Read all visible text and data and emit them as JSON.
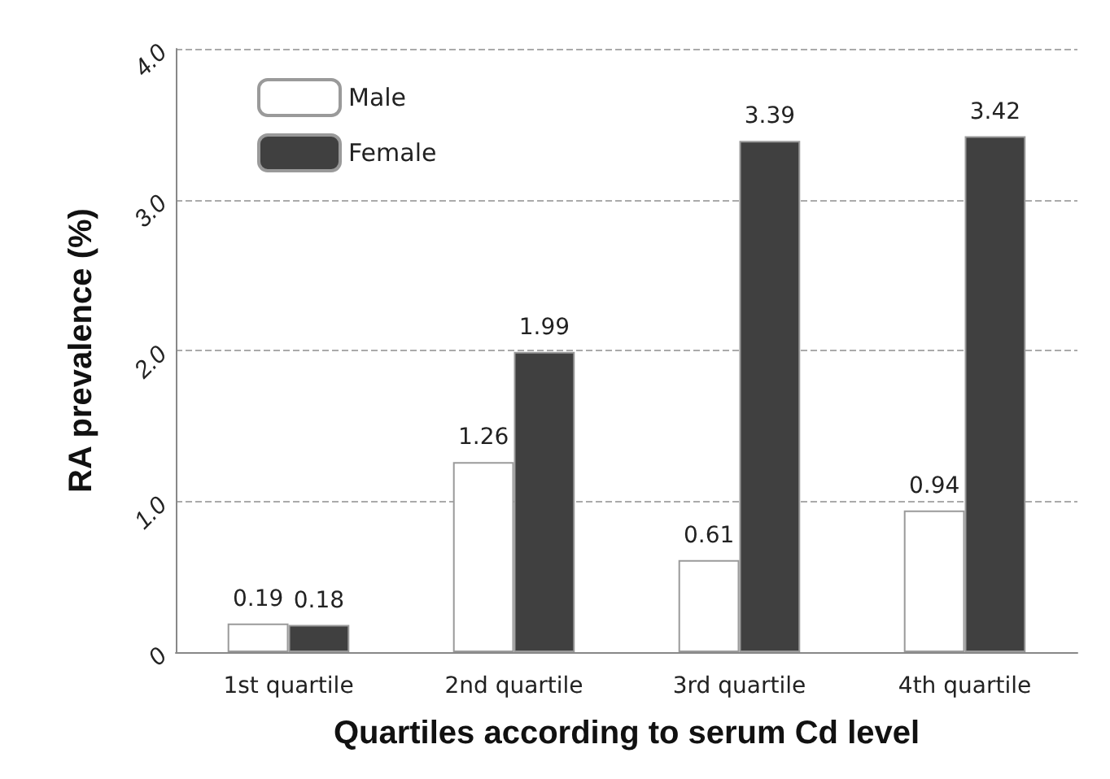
{
  "chart_data": {
    "type": "bar",
    "xlabel": "Quartiles according to serum Cd level",
    "ylabel": "RA prevalence (%)",
    "categories": [
      "1st quartile",
      "2nd quartile",
      "3rd quartile",
      "4th quartile"
    ],
    "series": [
      {
        "name": "Male",
        "color": "#ffffff",
        "values": [
          0.19,
          1.26,
          0.61,
          0.94
        ]
      },
      {
        "name": "Female",
        "color": "#404040",
        "values": [
          0.18,
          1.99,
          3.39,
          3.42
        ]
      }
    ],
    "ylim": [
      0,
      4
    ],
    "yticks": [
      0,
      {
        "value": 1,
        "label": "1.0"
      },
      {
        "value": 2,
        "label": "2.0"
      },
      {
        "value": 3,
        "label": "3.0"
      },
      {
        "value": 4,
        "label": "4.0"
      }
    ],
    "grid": "y",
    "legend": "top left",
    "data_labels": true
  }
}
